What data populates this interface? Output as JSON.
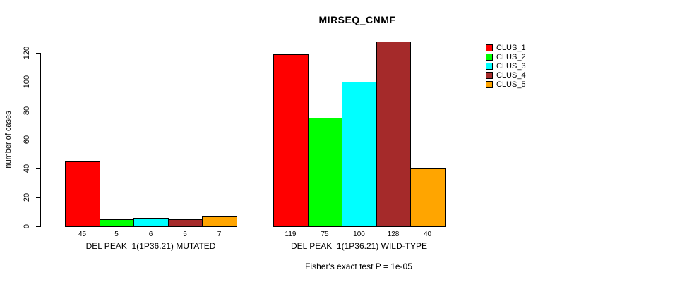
{
  "title": "MIRSEQ_CNMF",
  "footer": "Fisher's exact test P = 1e-05",
  "chart_data": {
    "type": "bar",
    "title": "MIRSEQ_CNMF",
    "xlabel": "",
    "ylabel": "number of cases",
    "ylim": [
      0,
      128
    ],
    "yticks": [
      0,
      20,
      40,
      60,
      80,
      100,
      120
    ],
    "grid": false,
    "legend_position": "right",
    "groups": [
      {
        "label": "DEL PEAK  1(1P36.21) MUTATED",
        "values": [
          45,
          5,
          6,
          5,
          7
        ]
      },
      {
        "label": "DEL PEAK  1(1P36.21) WILD-TYPE",
        "values": [
          119,
          75,
          100,
          128,
          40
        ]
      }
    ],
    "series": [
      {
        "name": "CLUS_1",
        "color": "#FF0000"
      },
      {
        "name": "CLUS_2",
        "color": "#00FF00"
      },
      {
        "name": "CLUS_3",
        "color": "#00FFFF"
      },
      {
        "name": "CLUS_4",
        "color": "#A52A2A"
      },
      {
        "name": "CLUS_5",
        "color": "#FFA500"
      }
    ],
    "annotation": "Fisher's exact test P = 1e-05"
  }
}
